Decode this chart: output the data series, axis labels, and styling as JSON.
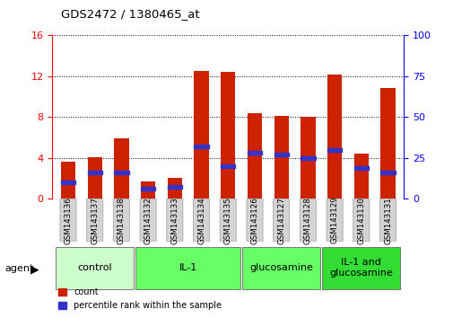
{
  "title": "GDS2472 / 1380465_at",
  "samples": [
    "GSM143136",
    "GSM143137",
    "GSM143138",
    "GSM143132",
    "GSM143133",
    "GSM143134",
    "GSM143135",
    "GSM143126",
    "GSM143127",
    "GSM143128",
    "GSM143129",
    "GSM143130",
    "GSM143131"
  ],
  "counts": [
    3.6,
    4.1,
    5.9,
    1.7,
    2.0,
    12.5,
    12.4,
    8.4,
    8.1,
    8.0,
    12.1,
    4.4,
    10.8
  ],
  "percentile_pct": [
    10,
    16,
    16,
    6,
    7,
    32,
    20,
    28,
    27,
    25,
    30,
    19,
    16
  ],
  "groups": [
    {
      "label": "control",
      "start": 0,
      "end": 3
    },
    {
      "label": "IL-1",
      "start": 3,
      "end": 7
    },
    {
      "label": "glucosamine",
      "start": 7,
      "end": 10
    },
    {
      "label": "IL-1 and\nglucosamine",
      "start": 10,
      "end": 13
    }
  ],
  "group_colors": [
    "#ccffcc",
    "#66ff66",
    "#66ff66",
    "#33dd33"
  ],
  "bar_color_red": "#cc2200",
  "bar_color_blue": "#3333cc",
  "ylim_left": [
    0,
    16
  ],
  "ylim_right": [
    0,
    100
  ],
  "yticks_left": [
    0,
    4,
    8,
    12,
    16
  ],
  "yticks_right": [
    0,
    25,
    50,
    75,
    100
  ],
  "bar_width": 0.55,
  "tick_label_bg": "#d3d3d3"
}
